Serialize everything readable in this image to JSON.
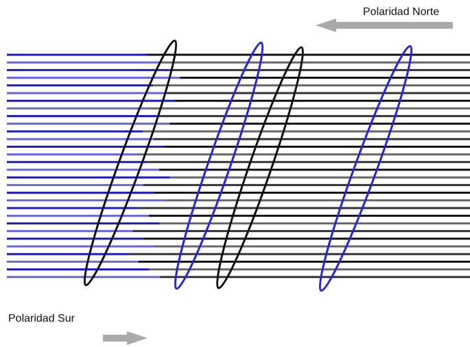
{
  "labels": {
    "north": "Polaridad Norte",
    "south": "Polaridad Sur"
  }
}
